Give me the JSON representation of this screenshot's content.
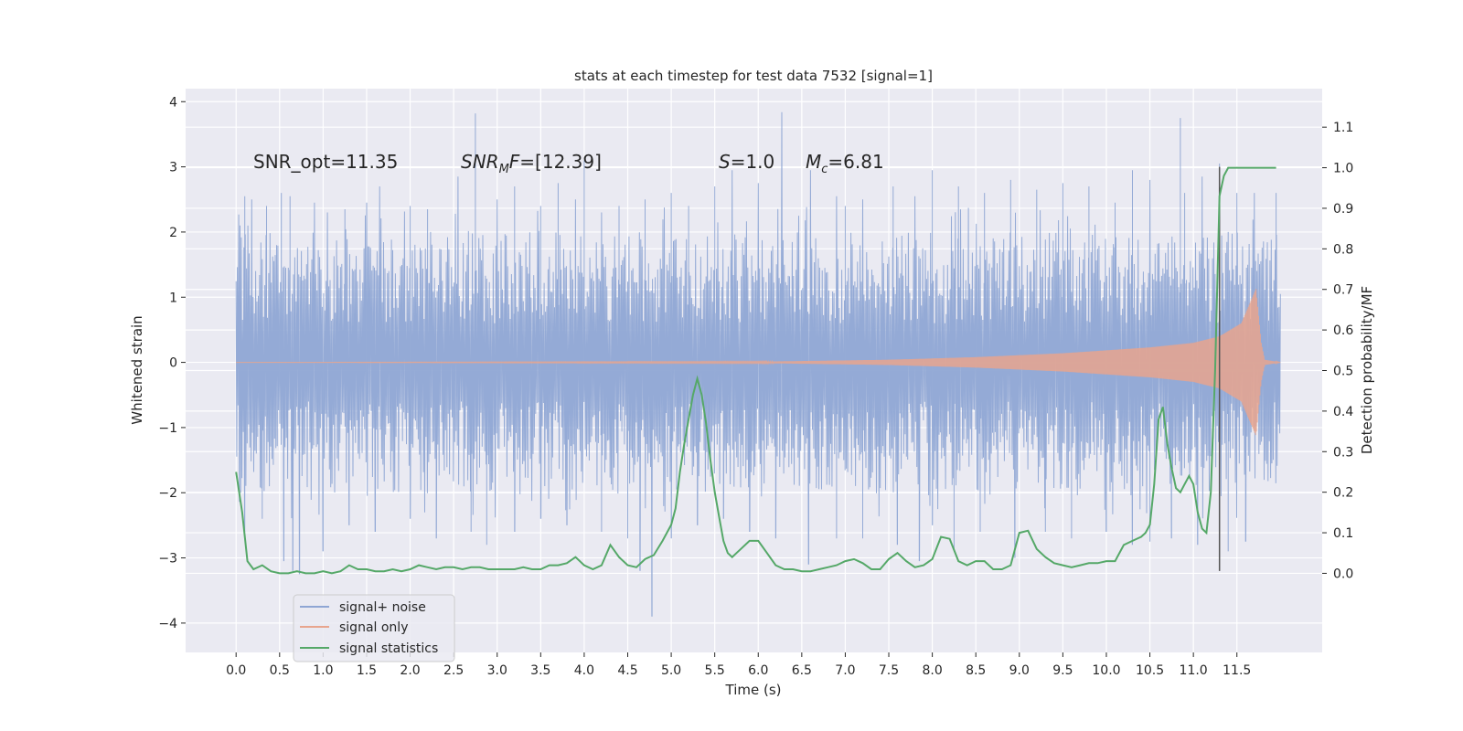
{
  "chart_data": {
    "type": "line",
    "title": "stats at each timestep for test data 7532 [signal=1]",
    "xlabel": "Time (s)",
    "ylabel": "Whitened strain",
    "y2label": "Detection probability/MF",
    "xlim": [
      -0.58,
      12.48
    ],
    "ylim": [
      -4.45,
      4.2
    ],
    "y2lim": [
      -0.195,
      1.195
    ],
    "x_ticks": [
      0.0,
      0.5,
      1.0,
      1.5,
      2.0,
      2.5,
      3.0,
      3.5,
      4.0,
      4.5,
      5.0,
      5.5,
      6.0,
      6.5,
      7.0,
      7.5,
      8.0,
      8.5,
      9.0,
      9.5,
      10.0,
      10.5,
      11.0,
      11.5
    ],
    "x_tick_labels": [
      "0.0",
      "0.5",
      "1.0",
      "1.5",
      "2.0",
      "2.5",
      "3.0",
      "3.5",
      "4.0",
      "4.5",
      "5.0",
      "5.5",
      "6.0",
      "6.5",
      "7.0",
      "7.5",
      "8.0",
      "8.5",
      "9.0",
      "9.5",
      "10.0",
      "10.5",
      "11.0",
      "11.5"
    ],
    "y_ticks": [
      -4,
      -3,
      -2,
      -1,
      0,
      1,
      2,
      3,
      4
    ],
    "y_tick_labels": [
      "−4",
      "−3",
      "−2",
      "−1",
      "0",
      "1",
      "2",
      "3",
      "4"
    ],
    "y2_ticks": [
      0.0,
      0.1,
      0.2,
      0.3,
      0.4,
      0.5,
      0.6,
      0.7,
      0.8,
      0.9,
      1.0,
      1.1
    ],
    "y2_tick_labels": [
      "0.0",
      "0.1",
      "0.2",
      "0.3",
      "0.4",
      "0.5",
      "0.6",
      "0.7",
      "0.8",
      "0.9",
      "1.0",
      "1.1"
    ],
    "grid": true,
    "legend_position": "lower-left",
    "annotations": [
      {
        "text": "SNR_opt=11.35",
        "x": 0.2,
        "y": 3.0
      },
      {
        "text": "SNR_MF=[12.39]",
        "x": 2.6,
        "y": 3.0
      },
      {
        "text": "S=1.0",
        "x": 5.6,
        "y": 3.0
      },
      {
        "text": "M_c=6.81",
        "x": 6.6,
        "y": 3.0
      }
    ],
    "vertical_marker": {
      "x": 11.3,
      "y_range": [
        -3.2,
        3.0
      ]
    },
    "series": [
      {
        "name": "signal+ noise",
        "axis": "left",
        "color": "#8fa6d4",
        "x_range": [
          0.0,
          12.0
        ],
        "band_typical": [
          -1.5,
          1.5
        ],
        "spikes": [
          [
            0.03,
            2.27
          ],
          [
            0.1,
            2.55
          ],
          [
            0.18,
            2.5
          ],
          [
            0.35,
            2.4
          ],
          [
            0.52,
            2.6
          ],
          [
            0.62,
            2.55
          ],
          [
            0.9,
            2.45
          ],
          [
            1.05,
            2.3
          ],
          [
            1.25,
            2.35
          ],
          [
            1.5,
            2.45
          ],
          [
            1.65,
            2.7
          ],
          [
            2.0,
            2.4
          ],
          [
            2.2,
            2.35
          ],
          [
            2.55,
            2.85
          ],
          [
            2.75,
            3.82
          ],
          [
            3.0,
            2.5
          ],
          [
            3.2,
            2.7
          ],
          [
            3.5,
            2.4
          ],
          [
            3.7,
            2.75
          ],
          [
            3.9,
            2.5
          ],
          [
            4.0,
            3.1
          ],
          [
            4.2,
            2.3
          ],
          [
            4.4,
            2.4
          ],
          [
            4.7,
            2.5
          ],
          [
            5.0,
            2.6
          ],
          [
            5.2,
            2.4
          ],
          [
            5.5,
            2.7
          ],
          [
            5.7,
            2.95
          ],
          [
            6.0,
            2.75
          ],
          [
            6.27,
            3.84
          ],
          [
            6.6,
            2.95
          ],
          [
            6.9,
            2.55
          ],
          [
            7.0,
            2.4
          ],
          [
            7.2,
            2.5
          ],
          [
            7.55,
            2.7
          ],
          [
            7.8,
            2.55
          ],
          [
            8.0,
            2.95
          ],
          [
            8.3,
            2.7
          ],
          [
            8.6,
            2.6
          ],
          [
            8.9,
            2.8
          ],
          [
            9.2,
            2.65
          ],
          [
            9.5,
            2.75
          ],
          [
            9.8,
            2.7
          ],
          [
            10.1,
            2.45
          ],
          [
            10.3,
            2.95
          ],
          [
            10.5,
            2.8
          ],
          [
            10.85,
            3.75
          ],
          [
            10.9,
            2.6
          ],
          [
            11.1,
            2.85
          ],
          [
            11.3,
            3.05
          ],
          [
            11.5,
            2.6
          ],
          [
            11.7,
            2.6
          ],
          [
            11.95,
            2.6
          ]
        ],
        "neg_spikes": [
          [
            0.1,
            -2.6
          ],
          [
            0.3,
            -2.4
          ],
          [
            0.55,
            -3.05
          ],
          [
            0.65,
            -3.2
          ],
          [
            0.73,
            -3.25
          ],
          [
            1.0,
            -2.9
          ],
          [
            1.3,
            -2.5
          ],
          [
            1.6,
            -2.6
          ],
          [
            2.0,
            -2.4
          ],
          [
            2.3,
            -2.7
          ],
          [
            2.7,
            -2.6
          ],
          [
            2.88,
            -2.8
          ],
          [
            3.2,
            -2.6
          ],
          [
            3.5,
            -2.4
          ],
          [
            3.8,
            -2.5
          ],
          [
            4.2,
            -2.6
          ],
          [
            4.5,
            -2.7
          ],
          [
            4.64,
            -3.2
          ],
          [
            4.78,
            -3.9
          ],
          [
            5.0,
            -2.7
          ],
          [
            5.3,
            -2.5
          ],
          [
            5.6,
            -2.4
          ],
          [
            5.9,
            -2.6
          ],
          [
            6.2,
            -2.7
          ],
          [
            6.58,
            -3.1
          ],
          [
            6.9,
            -2.7
          ],
          [
            7.2,
            -2.7
          ],
          [
            7.6,
            -2.8
          ],
          [
            7.85,
            -3.05
          ],
          [
            8.0,
            -2.5
          ],
          [
            8.25,
            -2.9
          ],
          [
            8.55,
            -2.6
          ],
          [
            8.95,
            -3.0
          ],
          [
            9.3,
            -2.6
          ],
          [
            9.6,
            -2.7
          ],
          [
            10.0,
            -2.6
          ],
          [
            10.3,
            -2.8
          ],
          [
            10.5,
            -2.75
          ],
          [
            10.75,
            -2.7
          ],
          [
            11.05,
            -2.8
          ],
          [
            11.4,
            -2.9
          ],
          [
            11.6,
            -2.75
          ],
          [
            11.9,
            -1.55
          ]
        ]
      },
      {
        "name": "signal only",
        "axis": "left",
        "color": "#e8a58e",
        "x_range": [
          0.0,
          12.0
        ],
        "envelope": [
          [
            0.0,
            0.0
          ],
          [
            6.0,
            0.01
          ],
          [
            7.5,
            0.04
          ],
          [
            8.5,
            0.08
          ],
          [
            9.5,
            0.14
          ],
          [
            10.5,
            0.23
          ],
          [
            11.0,
            0.3
          ],
          [
            11.3,
            0.4
          ],
          [
            11.55,
            0.6
          ],
          [
            11.72,
            1.13
          ],
          [
            11.78,
            0.3
          ],
          [
            11.82,
            0.04
          ],
          [
            12.0,
            0.0
          ]
        ]
      },
      {
        "name": "signal statistics",
        "axis": "right",
        "color": "#55a868",
        "x": [
          0.0,
          0.07,
          0.13,
          0.2,
          0.3,
          0.4,
          0.5,
          0.6,
          0.7,
          0.8,
          0.9,
          1.0,
          1.1,
          1.2,
          1.3,
          1.4,
          1.5,
          1.6,
          1.7,
          1.8,
          1.9,
          2.0,
          2.1,
          2.2,
          2.3,
          2.4,
          2.5,
          2.6,
          2.7,
          2.8,
          2.9,
          3.0,
          3.1,
          3.2,
          3.3,
          3.4,
          3.5,
          3.6,
          3.7,
          3.8,
          3.9,
          4.0,
          4.1,
          4.2,
          4.3,
          4.4,
          4.5,
          4.6,
          4.7,
          4.8,
          4.9,
          5.0,
          5.05,
          5.1,
          5.15,
          5.2,
          5.25,
          5.3,
          5.35,
          5.4,
          5.45,
          5.5,
          5.55,
          5.6,
          5.65,
          5.7,
          5.75,
          5.8,
          5.9,
          6.0,
          6.1,
          6.2,
          6.3,
          6.4,
          6.5,
          6.6,
          6.7,
          6.8,
          6.9,
          7.0,
          7.1,
          7.2,
          7.3,
          7.4,
          7.5,
          7.6,
          7.7,
          7.8,
          7.9,
          8.0,
          8.1,
          8.2,
          8.3,
          8.4,
          8.5,
          8.6,
          8.7,
          8.8,
          8.9,
          9.0,
          9.1,
          9.2,
          9.3,
          9.4,
          9.5,
          9.6,
          9.7,
          9.8,
          9.9,
          10.0,
          10.1,
          10.2,
          10.3,
          10.4,
          10.45,
          10.5,
          10.55,
          10.6,
          10.65,
          10.7,
          10.75,
          10.8,
          10.85,
          10.9,
          10.95,
          11.0,
          11.05,
          11.1,
          11.15,
          11.2,
          11.25,
          11.3,
          11.35,
          11.4,
          11.45,
          11.5,
          11.6,
          11.7,
          11.8,
          11.9,
          11.95
        ],
        "values": [
          0.25,
          0.15,
          0.03,
          0.01,
          0.02,
          0.005,
          0.0,
          0.0,
          0.005,
          0.0,
          0.0,
          0.005,
          0.0,
          0.005,
          0.02,
          0.01,
          0.01,
          0.005,
          0.005,
          0.01,
          0.005,
          0.01,
          0.02,
          0.015,
          0.01,
          0.015,
          0.015,
          0.01,
          0.015,
          0.015,
          0.01,
          0.01,
          0.01,
          0.01,
          0.015,
          0.01,
          0.01,
          0.02,
          0.02,
          0.025,
          0.04,
          0.02,
          0.01,
          0.02,
          0.07,
          0.04,
          0.02,
          0.015,
          0.035,
          0.045,
          0.08,
          0.12,
          0.16,
          0.25,
          0.32,
          0.38,
          0.44,
          0.48,
          0.44,
          0.37,
          0.28,
          0.2,
          0.14,
          0.08,
          0.05,
          0.04,
          0.05,
          0.06,
          0.08,
          0.08,
          0.05,
          0.02,
          0.01,
          0.01,
          0.005,
          0.005,
          0.01,
          0.015,
          0.02,
          0.03,
          0.035,
          0.025,
          0.01,
          0.01,
          0.035,
          0.05,
          0.03,
          0.015,
          0.02,
          0.035,
          0.09,
          0.085,
          0.03,
          0.02,
          0.03,
          0.03,
          0.01,
          0.01,
          0.02,
          0.1,
          0.105,
          0.06,
          0.04,
          0.025,
          0.02,
          0.015,
          0.02,
          0.025,
          0.025,
          0.03,
          0.03,
          0.07,
          0.08,
          0.09,
          0.1,
          0.12,
          0.22,
          0.38,
          0.41,
          0.32,
          0.26,
          0.21,
          0.2,
          0.22,
          0.24,
          0.22,
          0.15,
          0.11,
          0.1,
          0.2,
          0.5,
          0.93,
          0.98,
          1.0,
          1.0,
          1.0,
          1.0,
          1.0,
          1.0,
          1.0,
          1.0
        ]
      }
    ]
  }
}
